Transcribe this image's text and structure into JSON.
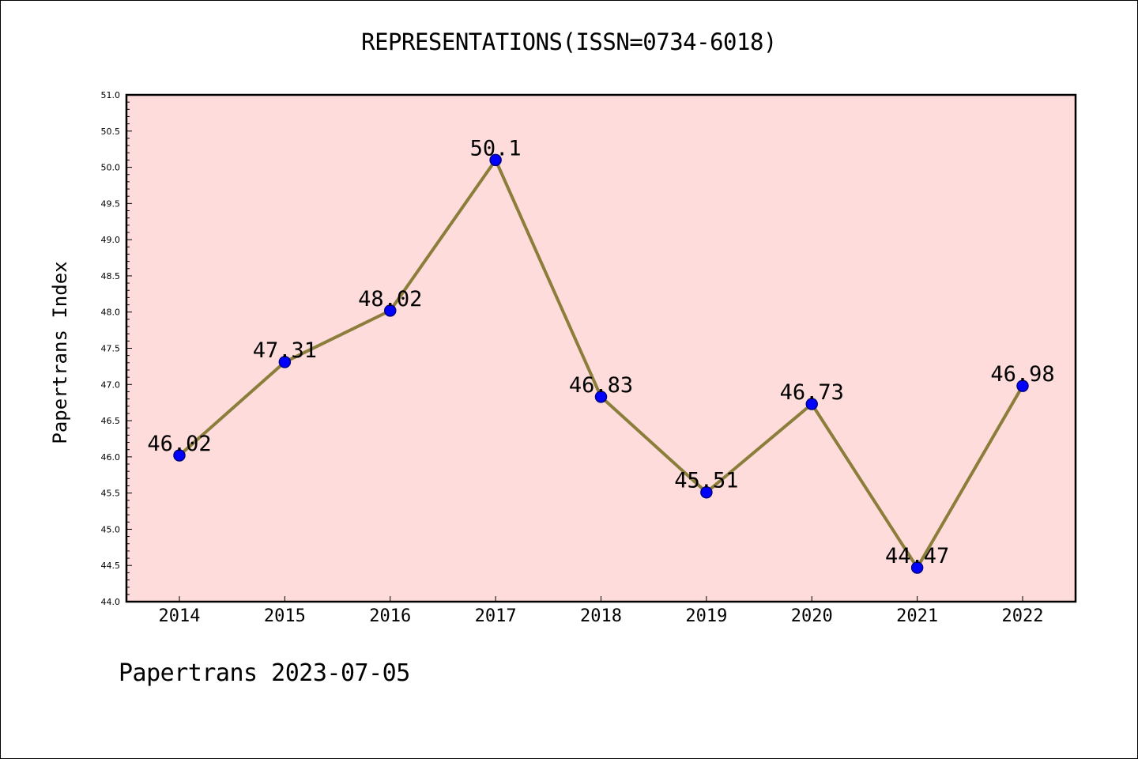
{
  "chart_data": {
    "type": "line",
    "title": "REPRESENTATIONS(ISSN=0734-6018)",
    "xlabel": "",
    "ylabel": "Papertrans Index",
    "categories": [
      "2014",
      "2015",
      "2016",
      "2017",
      "2018",
      "2019",
      "2020",
      "2021",
      "2022"
    ],
    "series": [
      {
        "values": [
          46.02,
          47.31,
          48.02,
          50.1,
          46.83,
          45.51,
          46.73,
          44.47,
          46.98
        ]
      }
    ],
    "data_labels": [
      "46.02",
      "47.31",
      "48.02",
      "50.1",
      "46.83",
      "45.51",
      "46.73",
      "44.47",
      "46.98"
    ],
    "ylim": [
      44.0,
      51.0
    ],
    "yticks": [
      "44.0",
      "44.5",
      "45.0",
      "45.5",
      "46.0",
      "46.5",
      "47.0",
      "47.5",
      "48.0",
      "48.5",
      "49.0",
      "49.5",
      "50.0",
      "50.5",
      "51.0"
    ],
    "grid": false,
    "legend": "none",
    "colors": {
      "plot_background": "#fddcdb",
      "line": "#8b7d3a",
      "marker_fill": "#0000ff",
      "marker_edge": "#000080"
    }
  },
  "footer": {
    "note": "Papertrans 2023-07-05"
  }
}
